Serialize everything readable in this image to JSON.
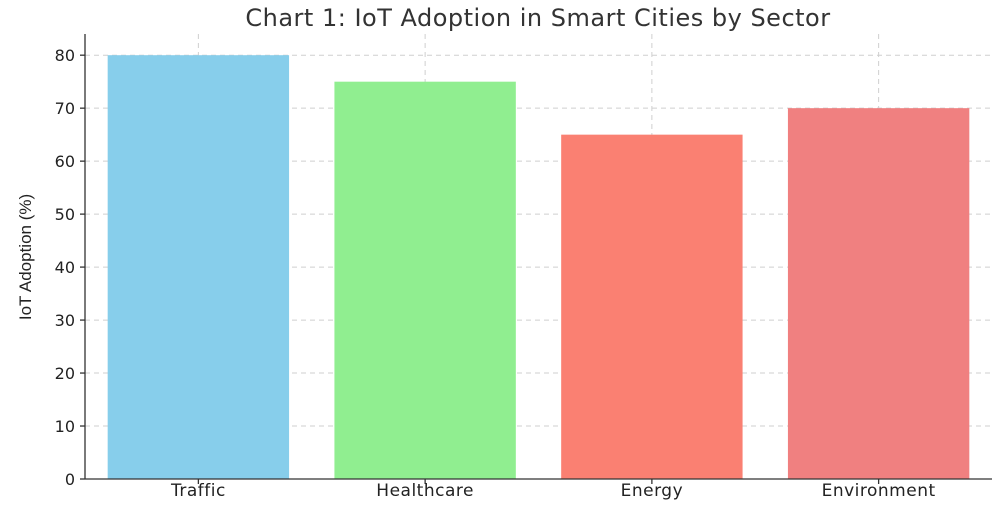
{
  "chart_data": {
    "type": "bar",
    "title": "Chart 1: IoT Adoption in Smart Cities by Sector",
    "xlabel": "",
    "ylabel": "IoT Adoption (%)",
    "categories": [
      "Traffic",
      "Healthcare",
      "Energy",
      "Environment"
    ],
    "values": [
      80,
      75,
      65,
      70
    ],
    "colors": [
      "#87ceeb",
      "#90ee90",
      "#fa8072",
      "#f08080"
    ],
    "ylim": [
      0,
      84
    ],
    "yticks": [
      0,
      10,
      20,
      30,
      40,
      50,
      60,
      70,
      80
    ],
    "grid": true
  }
}
